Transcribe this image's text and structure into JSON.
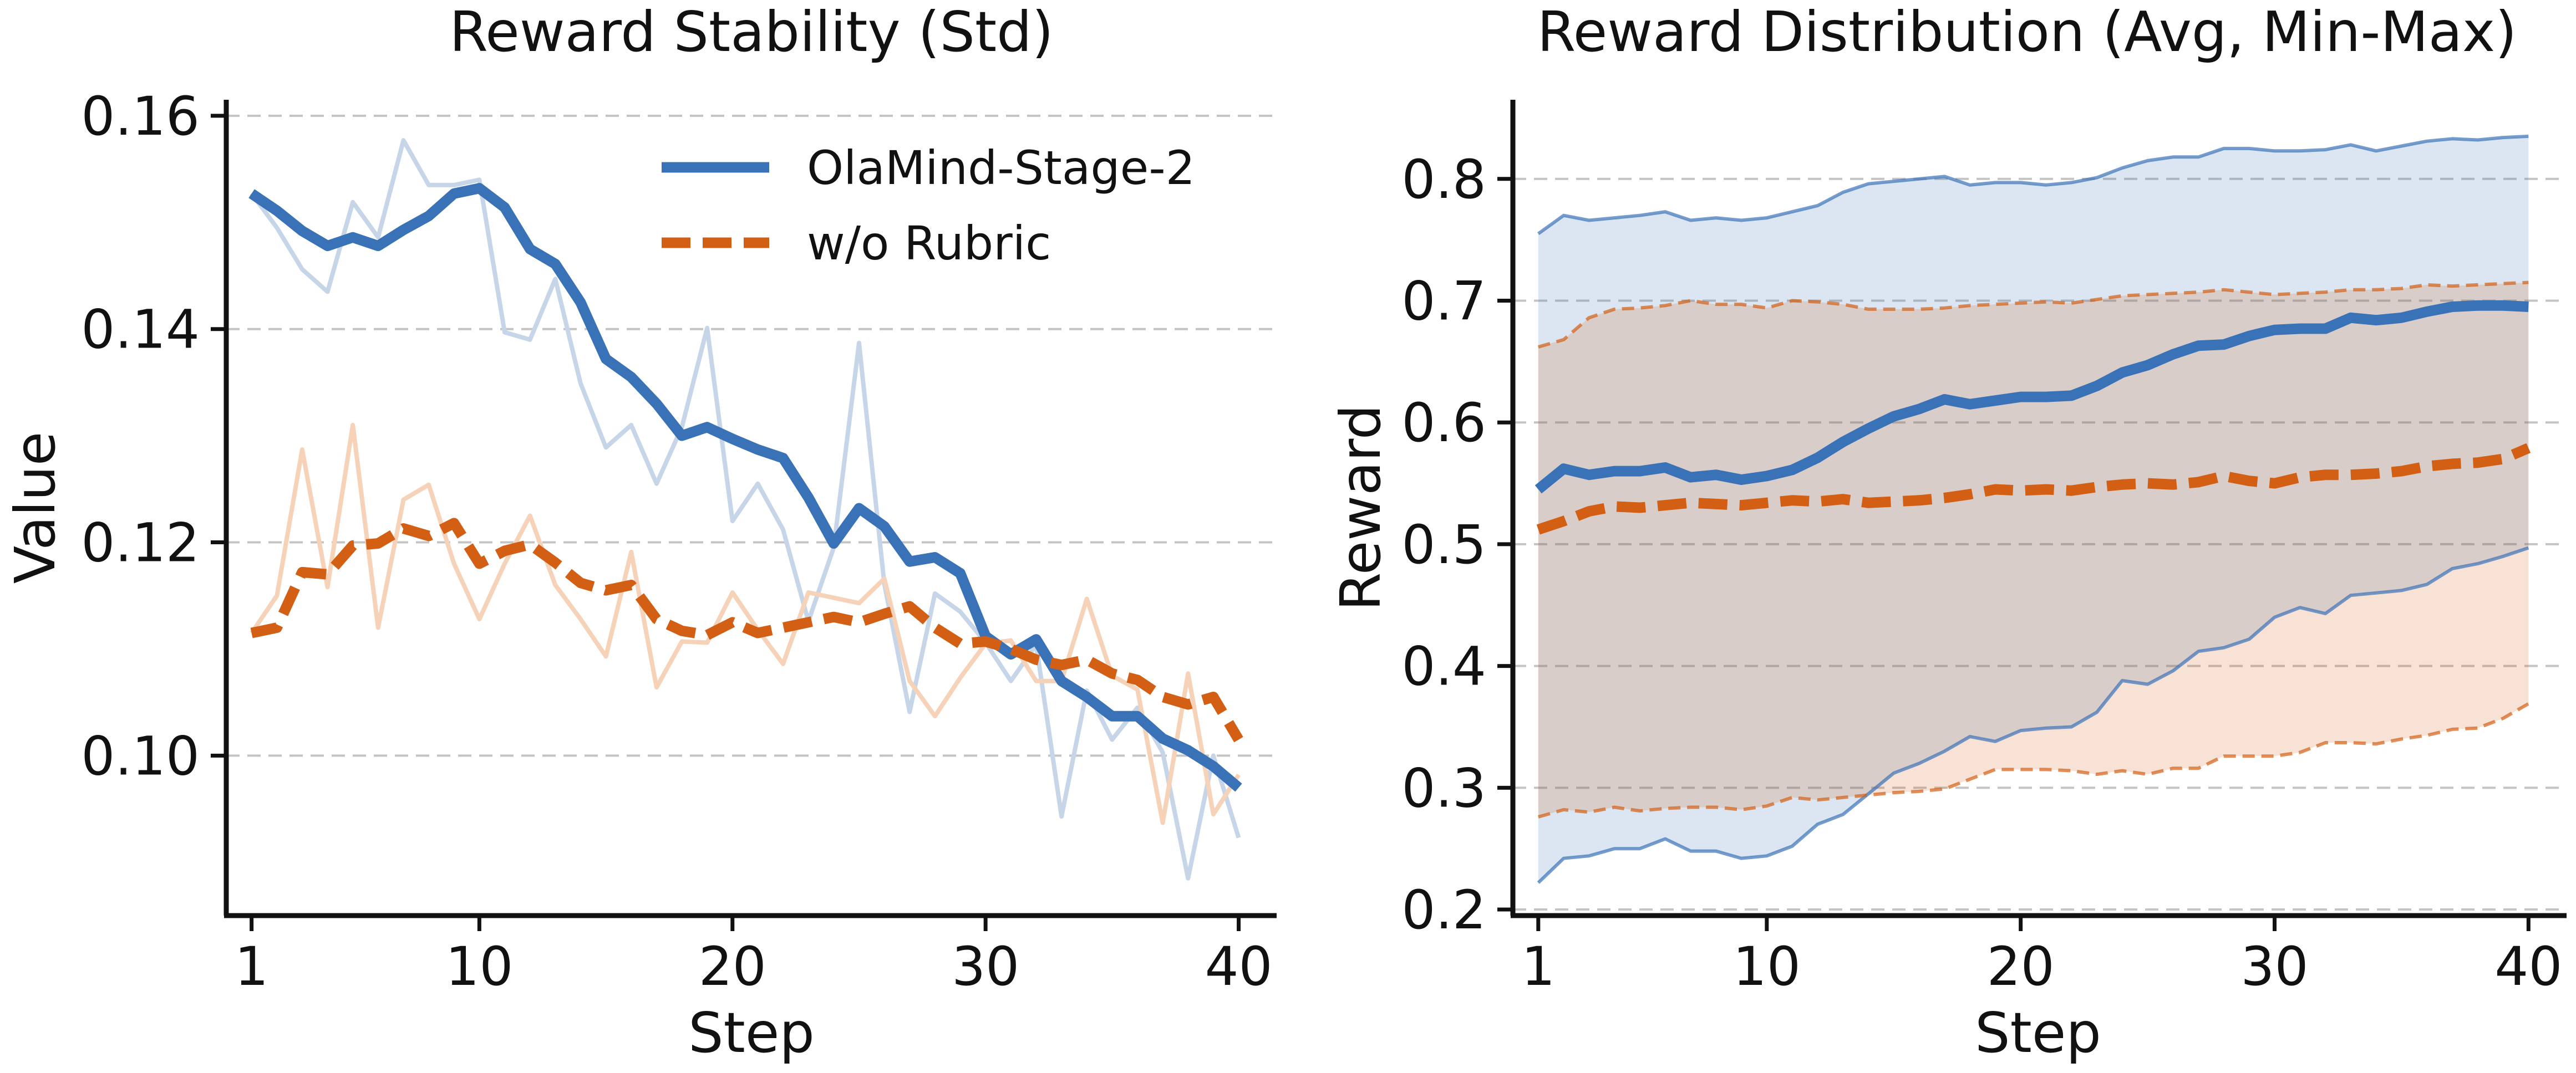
{
  "chart_data": [
    {
      "type": "line",
      "title": "Reward Stability (Std)",
      "xlabel": "Step",
      "ylabel": "Value",
      "xlim": [
        0,
        41.5
      ],
      "ylim": [
        0.085,
        0.1615
      ],
      "xticks": [
        1,
        10,
        20,
        30,
        40
      ],
      "xtick_labels": [
        "1",
        "10",
        "20",
        "30",
        "40"
      ],
      "yticks": [
        0.1,
        0.12,
        0.14,
        0.16
      ],
      "ytick_labels": [
        "0.10",
        "0.12",
        "0.14",
        "0.16"
      ],
      "grid": "horizontal dashed",
      "legend_position": "top-right",
      "x": [
        1,
        2,
        3,
        4,
        5,
        6,
        7,
        8,
        9,
        10,
        11,
        12,
        13,
        14,
        15,
        16,
        17,
        18,
        19,
        20,
        21,
        22,
        23,
        24,
        25,
        26,
        27,
        28,
        29,
        30,
        31,
        32,
        33,
        34,
        35,
        36,
        37,
        38,
        39,
        40
      ],
      "series": [
        {
          "name": "OlaMind-Stage-2",
          "color": "#3A72B8",
          "style": "solid",
          "values": [
            0.1527,
            0.1511,
            0.1492,
            0.1478,
            0.1486,
            0.1478,
            0.1493,
            0.1506,
            0.1527,
            0.1532,
            0.1514,
            0.1475,
            0.1461,
            0.1425,
            0.1372,
            0.1355,
            0.133,
            0.13,
            0.1308,
            0.1297,
            0.1287,
            0.1279,
            0.1242,
            0.1199,
            0.1232,
            0.1215,
            0.1182,
            0.1186,
            0.1171,
            0.1112,
            0.1095,
            0.1109,
            0.107,
            0.1055,
            0.1037,
            0.1037,
            0.1016,
            0.1005,
            0.099,
            0.097
          ]
        },
        {
          "name": "w/o Rubric",
          "color": "#D35F14",
          "style": "dashed",
          "values": [
            0.1115,
            0.112,
            0.1172,
            0.117,
            0.1197,
            0.1199,
            0.1213,
            0.1206,
            0.1218,
            0.118,
            0.1192,
            0.1198,
            0.1181,
            0.1162,
            0.1155,
            0.116,
            0.1128,
            0.1117,
            0.1113,
            0.1125,
            0.1115,
            0.112,
            0.1125,
            0.113,
            0.1125,
            0.1133,
            0.114,
            0.112,
            0.1105,
            0.1107,
            0.11,
            0.109,
            0.1085,
            0.109,
            0.1077,
            0.1071,
            0.1055,
            0.1048,
            0.1055,
            0.1015
          ]
        }
      ],
      "raw_series": [
        {
          "name": "OlaMind-Stage-2 (raw)",
          "color": "#C6D6E8",
          "values": [
            0.1527,
            0.1495,
            0.1456,
            0.1435,
            0.1519,
            0.1486,
            0.1577,
            0.1535,
            0.1535,
            0.154,
            0.1397,
            0.139,
            0.1447,
            0.1349,
            0.1289,
            0.131,
            0.1255,
            0.1308,
            0.1401,
            0.122,
            0.1255,
            0.1212,
            0.1126,
            0.1195,
            0.1387,
            0.1161,
            0.1041,
            0.1152,
            0.1135,
            0.1106,
            0.107,
            0.1104,
            0.0943,
            0.1061,
            0.1015,
            0.1045,
            0.1003,
            0.0885,
            0.1,
            0.0923
          ]
        },
        {
          "name": "w/o Rubric (raw)",
          "color": "#F6D2B8",
          "values": [
            0.1115,
            0.115,
            0.1287,
            0.1158,
            0.131,
            0.112,
            0.124,
            0.1254,
            0.118,
            0.1128,
            0.118,
            0.1225,
            0.116,
            0.1128,
            0.1093,
            0.1191,
            0.1064,
            0.1107,
            0.1106,
            0.1153,
            0.1118,
            0.1086,
            0.1153,
            0.1148,
            0.1143,
            0.1166,
            0.107,
            0.1037,
            0.1073,
            0.1105,
            0.1108,
            0.107,
            0.107,
            0.1147,
            0.1075,
            0.1062,
            0.0937,
            0.1077,
            0.0945,
            0.0982
          ]
        }
      ]
    },
    {
      "type": "area",
      "title": "Reward Distribution (Avg, Min-Max)",
      "xlabel": "Step",
      "ylabel": "Reward",
      "xlim": [
        0,
        41.5
      ],
      "ylim": [
        0.195,
        0.865
      ],
      "xticks": [
        1,
        10,
        20,
        30,
        40
      ],
      "xtick_labels": [
        "1",
        "10",
        "20",
        "30",
        "40"
      ],
      "yticks": [
        0.2,
        0.3,
        0.4,
        0.5,
        0.6,
        0.7,
        0.8
      ],
      "ytick_labels": [
        "0.2",
        "0.3",
        "0.4",
        "0.5",
        "0.6",
        "0.7",
        "0.8"
      ],
      "grid": "horizontal dashed",
      "x": [
        1,
        2,
        3,
        4,
        5,
        6,
        7,
        8,
        9,
        10,
        11,
        12,
        13,
        14,
        15,
        16,
        17,
        18,
        19,
        20,
        21,
        22,
        23,
        24,
        25,
        26,
        27,
        28,
        29,
        30,
        31,
        32,
        33,
        34,
        35,
        36,
        37,
        38,
        39,
        40
      ],
      "series": [
        {
          "name": "OlaMind-Stage-2",
          "color": "#3A72B8",
          "band_color": "#DCE6F3",
          "avg": [
            0.545,
            0.562,
            0.557,
            0.56,
            0.56,
            0.563,
            0.555,
            0.557,
            0.553,
            0.556,
            0.561,
            0.571,
            0.584,
            0.595,
            0.605,
            0.611,
            0.619,
            0.615,
            0.618,
            0.621,
            0.621,
            0.622,
            0.63,
            0.641,
            0.647,
            0.656,
            0.663,
            0.664,
            0.671,
            0.676,
            0.677,
            0.677,
            0.686,
            0.684,
            0.686,
            0.691,
            0.695,
            0.696,
            0.696,
            0.695
          ],
          "max": [
            0.755,
            0.77,
            0.766,
            0.768,
            0.77,
            0.773,
            0.766,
            0.768,
            0.766,
            0.768,
            0.773,
            0.778,
            0.789,
            0.796,
            0.798,
            0.8,
            0.802,
            0.795,
            0.797,
            0.797,
            0.795,
            0.797,
            0.801,
            0.809,
            0.815,
            0.818,
            0.818,
            0.825,
            0.825,
            0.823,
            0.823,
            0.824,
            0.828,
            0.823,
            0.827,
            0.831,
            0.833,
            0.832,
            0.834,
            0.835
          ],
          "min": [
            0.222,
            0.242,
            0.244,
            0.25,
            0.25,
            0.258,
            0.248,
            0.248,
            0.242,
            0.244,
            0.252,
            0.27,
            0.278,
            0.295,
            0.312,
            0.32,
            0.33,
            0.342,
            0.338,
            0.347,
            0.349,
            0.35,
            0.362,
            0.388,
            0.385,
            0.396,
            0.412,
            0.415,
            0.422,
            0.44,
            0.448,
            0.443,
            0.458,
            0.46,
            0.462,
            0.467,
            0.48,
            0.484,
            0.49,
            0.497
          ]
        },
        {
          "name": "w/o Rubric",
          "color": "#D35F14",
          "band_color": "#F9DECB",
          "avg": [
            0.512,
            0.519,
            0.527,
            0.531,
            0.53,
            0.532,
            0.534,
            0.533,
            0.532,
            0.534,
            0.536,
            0.535,
            0.537,
            0.534,
            0.535,
            0.536,
            0.538,
            0.541,
            0.545,
            0.544,
            0.545,
            0.544,
            0.547,
            0.549,
            0.55,
            0.549,
            0.551,
            0.556,
            0.552,
            0.55,
            0.555,
            0.557,
            0.557,
            0.558,
            0.56,
            0.564,
            0.566,
            0.567,
            0.57,
            0.579
          ],
          "max": [
            0.662,
            0.668,
            0.686,
            0.693,
            0.694,
            0.696,
            0.7,
            0.697,
            0.697,
            0.694,
            0.7,
            0.699,
            0.697,
            0.693,
            0.693,
            0.693,
            0.694,
            0.696,
            0.697,
            0.698,
            0.699,
            0.698,
            0.701,
            0.704,
            0.705,
            0.706,
            0.707,
            0.709,
            0.707,
            0.705,
            0.706,
            0.707,
            0.709,
            0.709,
            0.71,
            0.713,
            0.712,
            0.713,
            0.714,
            0.715
          ],
          "min": [
            0.276,
            0.282,
            0.28,
            0.284,
            0.281,
            0.283,
            0.284,
            0.284,
            0.282,
            0.285,
            0.292,
            0.29,
            0.292,
            0.294,
            0.296,
            0.297,
            0.299,
            0.307,
            0.315,
            0.315,
            0.315,
            0.314,
            0.311,
            0.314,
            0.311,
            0.316,
            0.316,
            0.326,
            0.326,
            0.326,
            0.329,
            0.337,
            0.337,
            0.336,
            0.34,
            0.343,
            0.348,
            0.349,
            0.357,
            0.369
          ]
        }
      ]
    }
  ]
}
